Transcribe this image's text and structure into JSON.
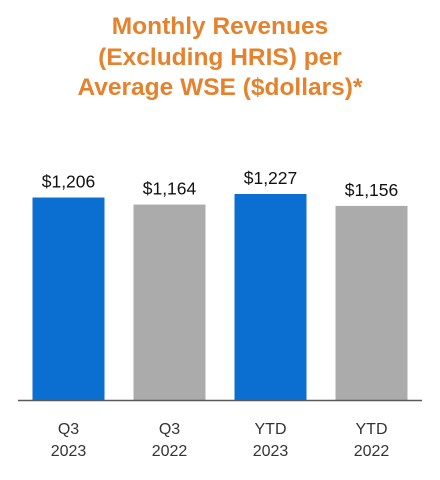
{
  "chart_data": {
    "type": "bar",
    "title_lines": [
      "Monthly Revenues",
      "(Excluding HRIS) per",
      "Average WSE ($dollars)*"
    ],
    "categories": [
      [
        "Q3",
        "2023"
      ],
      [
        "Q3",
        "2022"
      ],
      [
        "YTD",
        "2023"
      ],
      [
        "YTD",
        "2022"
      ]
    ],
    "values": [
      1206,
      1164,
      1227,
      1156
    ],
    "value_labels": [
      "$1,206",
      "$1,164",
      "$1,227",
      "$1,156"
    ],
    "ylim": [
      0,
      1227
    ],
    "grid": false,
    "colors": {
      "title": "#e4822d",
      "highlight": "#0a6fd1",
      "comparison": "#ababab",
      "axis": "#595959"
    },
    "bar_colors": [
      "highlight",
      "comparison",
      "highlight",
      "comparison"
    ]
  }
}
